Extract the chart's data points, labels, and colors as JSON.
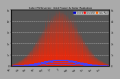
{
  "title": "Solar PV/Inverter  Grid Power & Solar Radiation",
  "bg_color": "#aaaaaa",
  "plot_bg_color": "#555555",
  "grid_color": "#888888",
  "grid_power_color": "#ff2200",
  "solar_rad_color": "#4444ff",
  "legend_labels": [
    "Grid W",
    "Grid kWh",
    "Solar Rad"
  ],
  "legend_colors": [
    "#0000cc",
    "#ff0000",
    "#ff6600"
  ],
  "ylim": [
    0,
    5000
  ],
  "n_days": 365,
  "seed": 99
}
